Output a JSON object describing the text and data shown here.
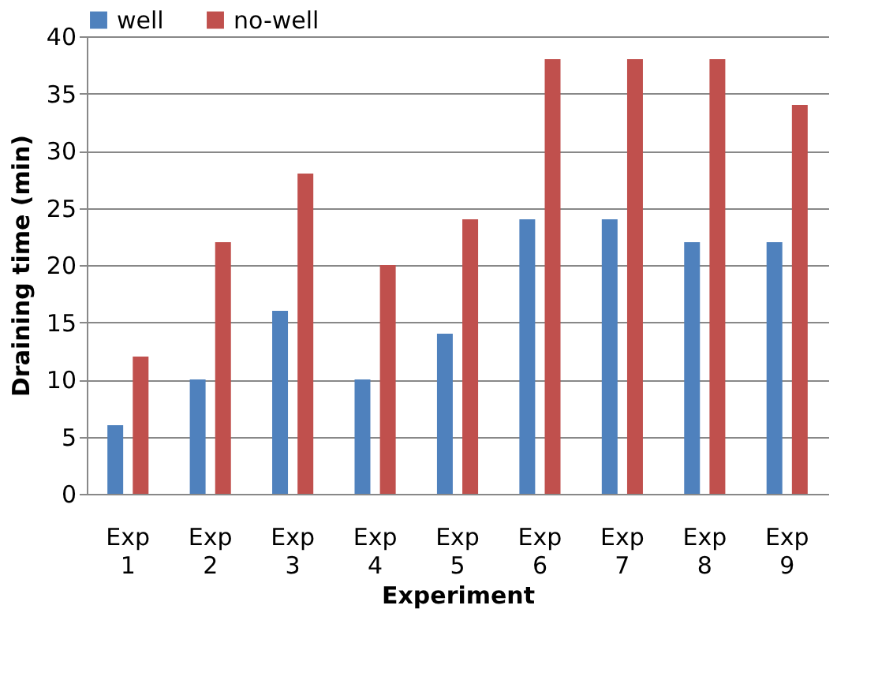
{
  "chart_data": {
    "type": "bar",
    "xlabel": "Experiment",
    "ylabel": "Draining time (min)",
    "categories": [
      "Exp 1",
      "Exp 2",
      "Exp 3",
      "Exp 4",
      "Exp 5",
      "Exp 6",
      "Exp 7",
      "Exp 8",
      "Exp 9"
    ],
    "series": [
      {
        "name": "well",
        "color": "#4f81bd",
        "values": [
          6,
          10,
          16,
          10,
          14,
          24,
          24,
          22,
          22
        ]
      },
      {
        "name": "no-well",
        "color": "#c0504d",
        "values": [
          12,
          22,
          28,
          20,
          24,
          38,
          38,
          38,
          34
        ]
      }
    ],
    "ylim": [
      0,
      40
    ],
    "yticks": [
      0,
      5,
      10,
      15,
      20,
      25,
      30,
      35,
      40
    ],
    "grid": "y",
    "legend": "top"
  }
}
